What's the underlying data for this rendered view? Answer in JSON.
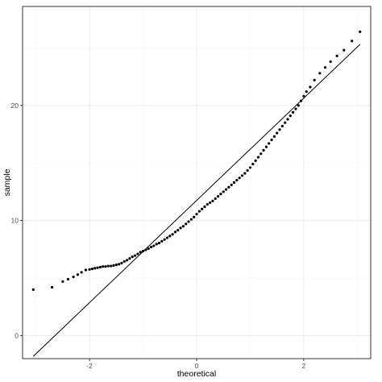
{
  "colors": {
    "background": "#ffffff",
    "panel_border": "#333333",
    "grid_major": "#ebebeb",
    "grid_minor": "#f5f5f5",
    "points": "#000000",
    "reference_line": "#000000",
    "tick_text": "#4d4d4d"
  },
  "chart_data": {
    "type": "scatter",
    "title": "",
    "xlabel": "theoretical",
    "ylabel": "sample",
    "xlim": [
      -3.25,
      3.25
    ],
    "ylim": [
      -2.0,
      28.6
    ],
    "x_ticks": [
      -2,
      0,
      2
    ],
    "x_tick_labels": [
      "-2",
      "0",
      "2"
    ],
    "y_ticks": [
      0,
      10,
      20
    ],
    "y_tick_labels": [
      "0",
      "10",
      "20"
    ],
    "grid": true,
    "legend": "none",
    "reference_line": {
      "points": [
        [
          -3.05,
          -1.8
        ],
        [
          3.05,
          25.3
        ]
      ]
    },
    "series": [
      {
        "values": [
          [
            -3.05,
            4.0
          ],
          [
            -2.7,
            4.2
          ],
          [
            -2.5,
            4.7
          ],
          [
            -2.4,
            4.9
          ],
          [
            -2.3,
            5.1
          ],
          [
            -2.22,
            5.3
          ],
          [
            -2.15,
            5.5
          ],
          [
            -2.07,
            5.7
          ],
          [
            -2.0,
            5.75
          ],
          [
            -1.95,
            5.8
          ],
          [
            -1.9,
            5.85
          ],
          [
            -1.85,
            5.9
          ],
          [
            -1.8,
            5.95
          ],
          [
            -1.75,
            6.0
          ],
          [
            -1.7,
            6.0
          ],
          [
            -1.65,
            6.05
          ],
          [
            -1.6,
            6.05
          ],
          [
            -1.55,
            6.1
          ],
          [
            -1.5,
            6.15
          ],
          [
            -1.45,
            6.2
          ],
          [
            -1.4,
            6.3
          ],
          [
            -1.35,
            6.45
          ],
          [
            -1.3,
            6.55
          ],
          [
            -1.25,
            6.7
          ],
          [
            -1.2,
            6.85
          ],
          [
            -1.15,
            6.95
          ],
          [
            -1.1,
            7.1
          ],
          [
            -1.05,
            7.25
          ],
          [
            -1.0,
            7.35
          ],
          [
            -0.95,
            7.45
          ],
          [
            -0.9,
            7.55
          ],
          [
            -0.85,
            7.7
          ],
          [
            -0.8,
            7.8
          ],
          [
            -0.75,
            7.95
          ],
          [
            -0.7,
            8.05
          ],
          [
            -0.65,
            8.2
          ],
          [
            -0.6,
            8.35
          ],
          [
            -0.55,
            8.5
          ],
          [
            -0.5,
            8.65
          ],
          [
            -0.45,
            8.8
          ],
          [
            -0.4,
            9.0
          ],
          [
            -0.35,
            9.15
          ],
          [
            -0.3,
            9.35
          ],
          [
            -0.25,
            9.5
          ],
          [
            -0.2,
            9.7
          ],
          [
            -0.15,
            9.9
          ],
          [
            -0.1,
            10.1
          ],
          [
            -0.05,
            10.3
          ],
          [
            0.0,
            10.55
          ],
          [
            0.05,
            10.8
          ],
          [
            0.1,
            11.0
          ],
          [
            0.15,
            11.2
          ],
          [
            0.2,
            11.4
          ],
          [
            0.25,
            11.55
          ],
          [
            0.3,
            11.7
          ],
          [
            0.35,
            11.9
          ],
          [
            0.4,
            12.1
          ],
          [
            0.45,
            12.3
          ],
          [
            0.5,
            12.5
          ],
          [
            0.55,
            12.7
          ],
          [
            0.6,
            12.9
          ],
          [
            0.65,
            13.1
          ],
          [
            0.7,
            13.3
          ],
          [
            0.75,
            13.5
          ],
          [
            0.8,
            13.7
          ],
          [
            0.85,
            13.9
          ],
          [
            0.9,
            14.1
          ],
          [
            0.95,
            14.35
          ],
          [
            1.0,
            14.6
          ],
          [
            1.05,
            14.9
          ],
          [
            1.1,
            15.2
          ],
          [
            1.15,
            15.5
          ],
          [
            1.2,
            15.8
          ],
          [
            1.25,
            16.1
          ],
          [
            1.3,
            16.4
          ],
          [
            1.35,
            16.7
          ],
          [
            1.4,
            17.0
          ],
          [
            1.45,
            17.3
          ],
          [
            1.5,
            17.6
          ],
          [
            1.55,
            17.9
          ],
          [
            1.6,
            18.2
          ],
          [
            1.65,
            18.5
          ],
          [
            1.7,
            18.8
          ],
          [
            1.75,
            19.1
          ],
          [
            1.8,
            19.4
          ],
          [
            1.85,
            19.7
          ],
          [
            1.9,
            20.0
          ],
          [
            1.95,
            20.4
          ],
          [
            2.0,
            20.8
          ],
          [
            2.05,
            21.2
          ],
          [
            2.12,
            21.6
          ],
          [
            2.2,
            22.2
          ],
          [
            2.3,
            22.8
          ],
          [
            2.4,
            23.3
          ],
          [
            2.5,
            23.8
          ],
          [
            2.62,
            24.3
          ],
          [
            2.75,
            24.8
          ],
          [
            2.9,
            25.6
          ],
          [
            3.05,
            26.4
          ]
        ]
      }
    ]
  }
}
